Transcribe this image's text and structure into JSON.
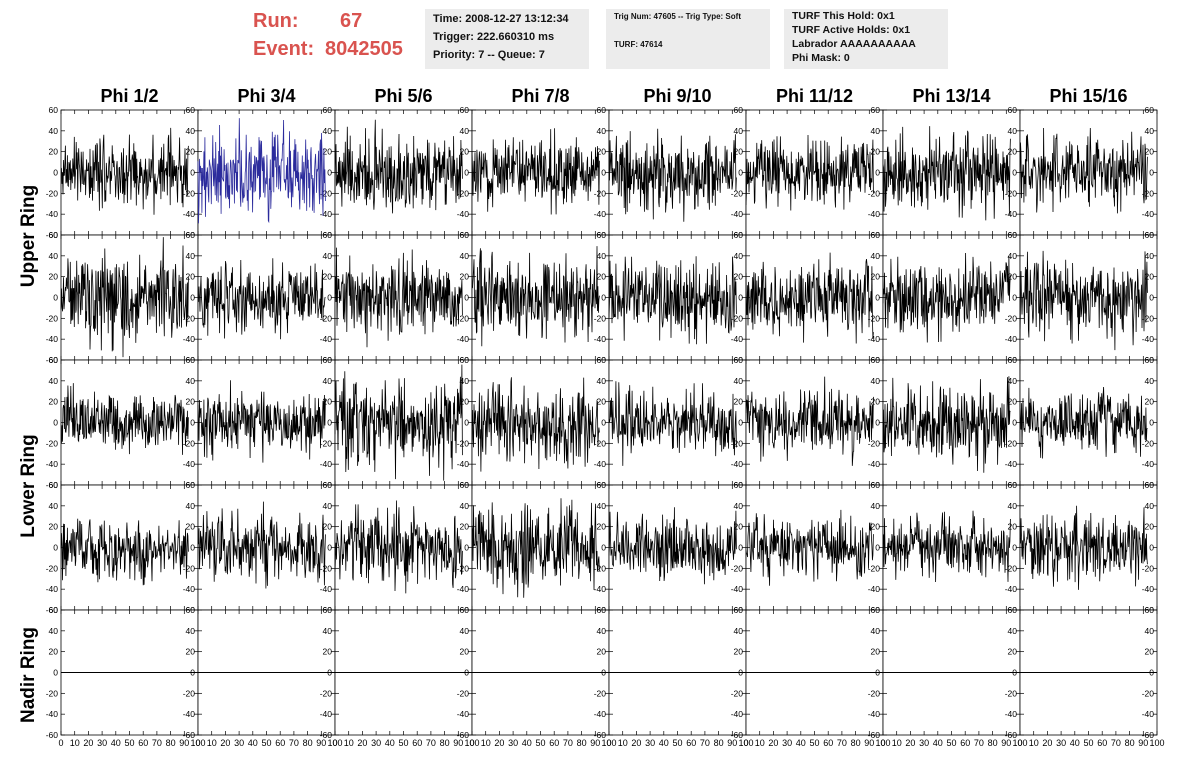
{
  "header": {
    "run_label": "Run:",
    "run_value": "67",
    "event_label": "Event:",
    "event_value": "8042505"
  },
  "info_box_1": {
    "time": "Time: 2008-12-27 13:12:34",
    "trigger": "Trigger: 222.660310 ms",
    "priority": "Priority: 7 -- Queue: 7"
  },
  "info_box_2": {
    "trig": "Trig Num: 47605 -- Trig Type: Soft",
    "turf": "TURF: 47614"
  },
  "info_box_3": {
    "hold": "TURF This Hold: 0x1",
    "active": "TURF Active Holds: 0x1",
    "labrador": "Labrador AAAAAAAAAA",
    "phimask": "Phi Mask: 0"
  },
  "columns": [
    "Phi 1/2",
    "Phi 3/4",
    "Phi 5/6",
    "Phi 7/8",
    "Phi 9/10",
    "Phi 11/12",
    "Phi 13/14",
    "Phi 15/16"
  ],
  "row_labels": [
    {
      "label": "Upper Ring",
      "rows": [
        0,
        1
      ]
    },
    {
      "label": "Lower Ring",
      "rows": [
        2,
        3
      ]
    },
    {
      "label": "Nadir Ring",
      "rows": [
        4
      ]
    }
  ],
  "colors": {
    "run_text": "#d9534f",
    "info_bg": "#ececec",
    "trace": "#000000",
    "highlight_trace": "#2b2b9c"
  },
  "chart_data": {
    "type": "line",
    "grid_rows": 5,
    "grid_cols": 8,
    "xlim": [
      0,
      100
    ],
    "ylim": [
      -60,
      60
    ],
    "x_ticks": [
      "0",
      "10",
      "20",
      "30",
      "40",
      "50",
      "60",
      "70",
      "80",
      "90",
      "100"
    ],
    "y_ticks": [
      "-60",
      "-40",
      "-20",
      "0",
      "20",
      "40",
      "60"
    ],
    "trace_x_range": [
      0,
      93
    ],
    "highlighted_panel": {
      "row": 0,
      "col": 1
    },
    "panels": [
      [
        {
          "amplitude": 16
        },
        {
          "amplitude": 20
        },
        {
          "amplitude": 18
        },
        {
          "amplitude": 16
        },
        {
          "amplitude": 18
        },
        {
          "amplitude": 16
        },
        {
          "amplitude": 18
        },
        {
          "amplitude": 18
        }
      ],
      [
        {
          "amplitude": 20
        },
        {
          "amplitude": 16
        },
        {
          "amplitude": 18
        },
        {
          "amplitude": 20
        },
        {
          "amplitude": 18
        },
        {
          "amplitude": 18
        },
        {
          "amplitude": 18
        },
        {
          "amplitude": 20
        }
      ],
      [
        {
          "amplitude": 14
        },
        {
          "amplitude": 16
        },
        {
          "amplitude": 20
        },
        {
          "amplitude": 18
        },
        {
          "amplitude": 16
        },
        {
          "amplitude": 16
        },
        {
          "amplitude": 18
        },
        {
          "amplitude": 14
        }
      ],
      [
        {
          "amplitude": 16
        },
        {
          "amplitude": 16
        },
        {
          "amplitude": 18
        },
        {
          "amplitude": 20
        },
        {
          "amplitude": 14
        },
        {
          "amplitude": 14
        },
        {
          "amplitude": 14
        },
        {
          "amplitude": 16
        }
      ],
      [
        {
          "amplitude": 0
        },
        {
          "amplitude": 0
        },
        {
          "amplitude": 0
        },
        {
          "amplitude": 0
        },
        {
          "amplitude": 0
        },
        {
          "amplitude": 0
        },
        {
          "amplitude": 0
        },
        {
          "amplitude": 0
        }
      ]
    ]
  }
}
